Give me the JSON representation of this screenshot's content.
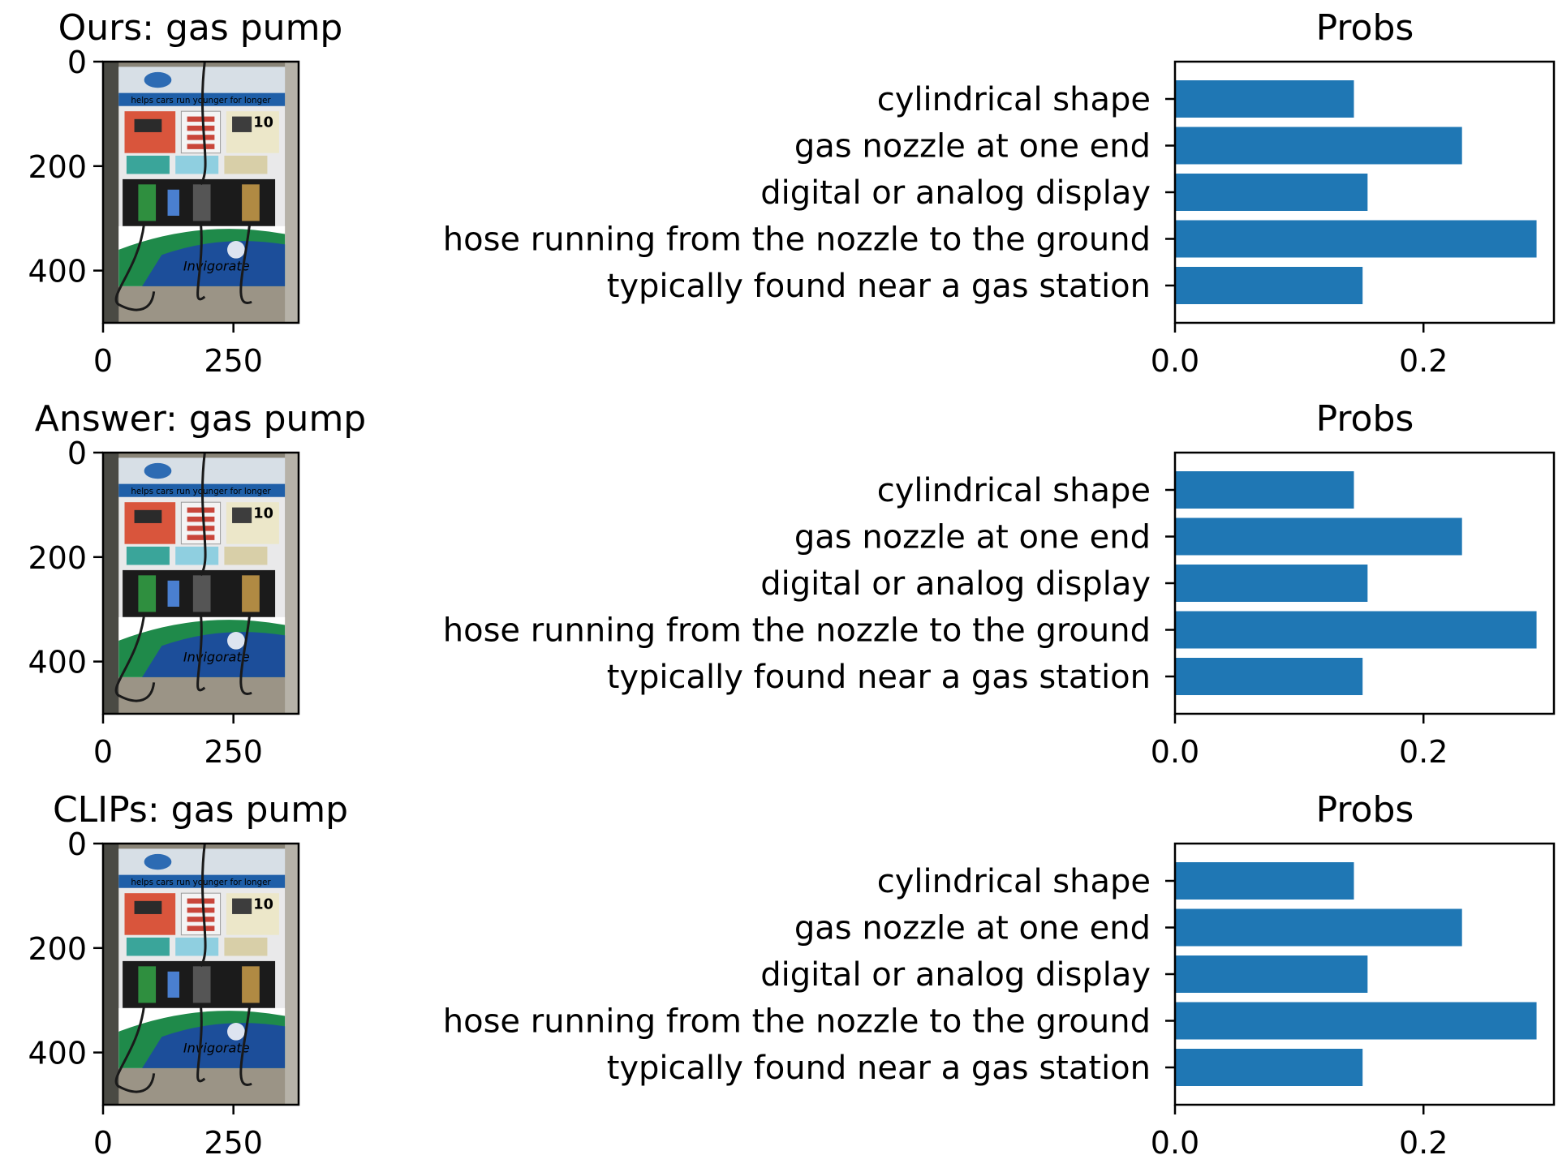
{
  "panels": [
    {
      "image_title": "Ours: gas pump",
      "image_axes": {
        "y_ticks": [
          "0",
          "200",
          "400"
        ],
        "x_ticks": [
          "0",
          "250"
        ],
        "y_tick_values": [
          0,
          200,
          400
        ],
        "x_tick_values": [
          0,
          250
        ],
        "ylim": [
          500,
          0
        ],
        "xlim": [
          0,
          375
        ]
      },
      "image_content": "gas-pump-photo",
      "image_text": [
        "Invigorate",
        "helps cars run younger for longer",
        "10"
      ]
    },
    {
      "image_title": "Answer: gas pump",
      "image_axes": {
        "y_ticks": [
          "0",
          "200",
          "400"
        ],
        "x_ticks": [
          "0",
          "250"
        ],
        "y_tick_values": [
          0,
          200,
          400
        ],
        "x_tick_values": [
          0,
          250
        ],
        "ylim": [
          500,
          0
        ],
        "xlim": [
          0,
          375
        ]
      },
      "image_content": "gas-pump-photo",
      "image_text": [
        "Invigorate",
        "helps cars run younger for longer",
        "10"
      ]
    },
    {
      "image_title": "CLIPs: gas pump",
      "image_axes": {
        "y_ticks": [
          "0",
          "200",
          "400"
        ],
        "x_ticks": [
          "0",
          "250"
        ],
        "y_tick_values": [
          0,
          200,
          400
        ],
        "x_tick_values": [
          0,
          250
        ],
        "ylim": [
          500,
          0
        ],
        "xlim": [
          0,
          375
        ]
      },
      "image_content": "gas-pump-photo",
      "image_text": [
        "Invigorate",
        "helps cars run younger for longer",
        "10"
      ]
    }
  ],
  "colors": {
    "bar": "#1f77b4",
    "axis": "#000000",
    "background": "#ffffff"
  },
  "chart_data": [
    {
      "type": "bar",
      "orientation": "horizontal",
      "title": "Probs",
      "categories": [
        "cylindrical shape",
        "gas nozzle at one end",
        "digital or analog display",
        "hose running from the nozzle to the ground",
        "typically found near a gas station"
      ],
      "values": [
        0.144,
        0.231,
        0.155,
        0.291,
        0.151
      ],
      "xlim": [
        0,
        0.305
      ],
      "x_ticks": [
        0.0,
        0.2
      ],
      "x_tick_labels": [
        "0.0",
        "0.2"
      ],
      "grid": false
    },
    {
      "type": "bar",
      "orientation": "horizontal",
      "title": "Probs",
      "categories": [
        "cylindrical shape",
        "gas nozzle at one end",
        "digital or analog display",
        "hose running from the nozzle to the ground",
        "typically found near a gas station"
      ],
      "values": [
        0.144,
        0.231,
        0.155,
        0.291,
        0.151
      ],
      "xlim": [
        0,
        0.305
      ],
      "x_ticks": [
        0.0,
        0.2
      ],
      "x_tick_labels": [
        "0.0",
        "0.2"
      ],
      "grid": false
    },
    {
      "type": "bar",
      "orientation": "horizontal",
      "title": "Probs",
      "categories": [
        "cylindrical shape",
        "gas nozzle at one end",
        "digital or analog display",
        "hose running from the nozzle to the ground",
        "typically found near a gas station"
      ],
      "values": [
        0.144,
        0.231,
        0.155,
        0.291,
        0.151
      ],
      "xlim": [
        0,
        0.305
      ],
      "x_ticks": [
        0.0,
        0.2
      ],
      "x_tick_labels": [
        "0.0",
        "0.2"
      ],
      "grid": false
    }
  ]
}
